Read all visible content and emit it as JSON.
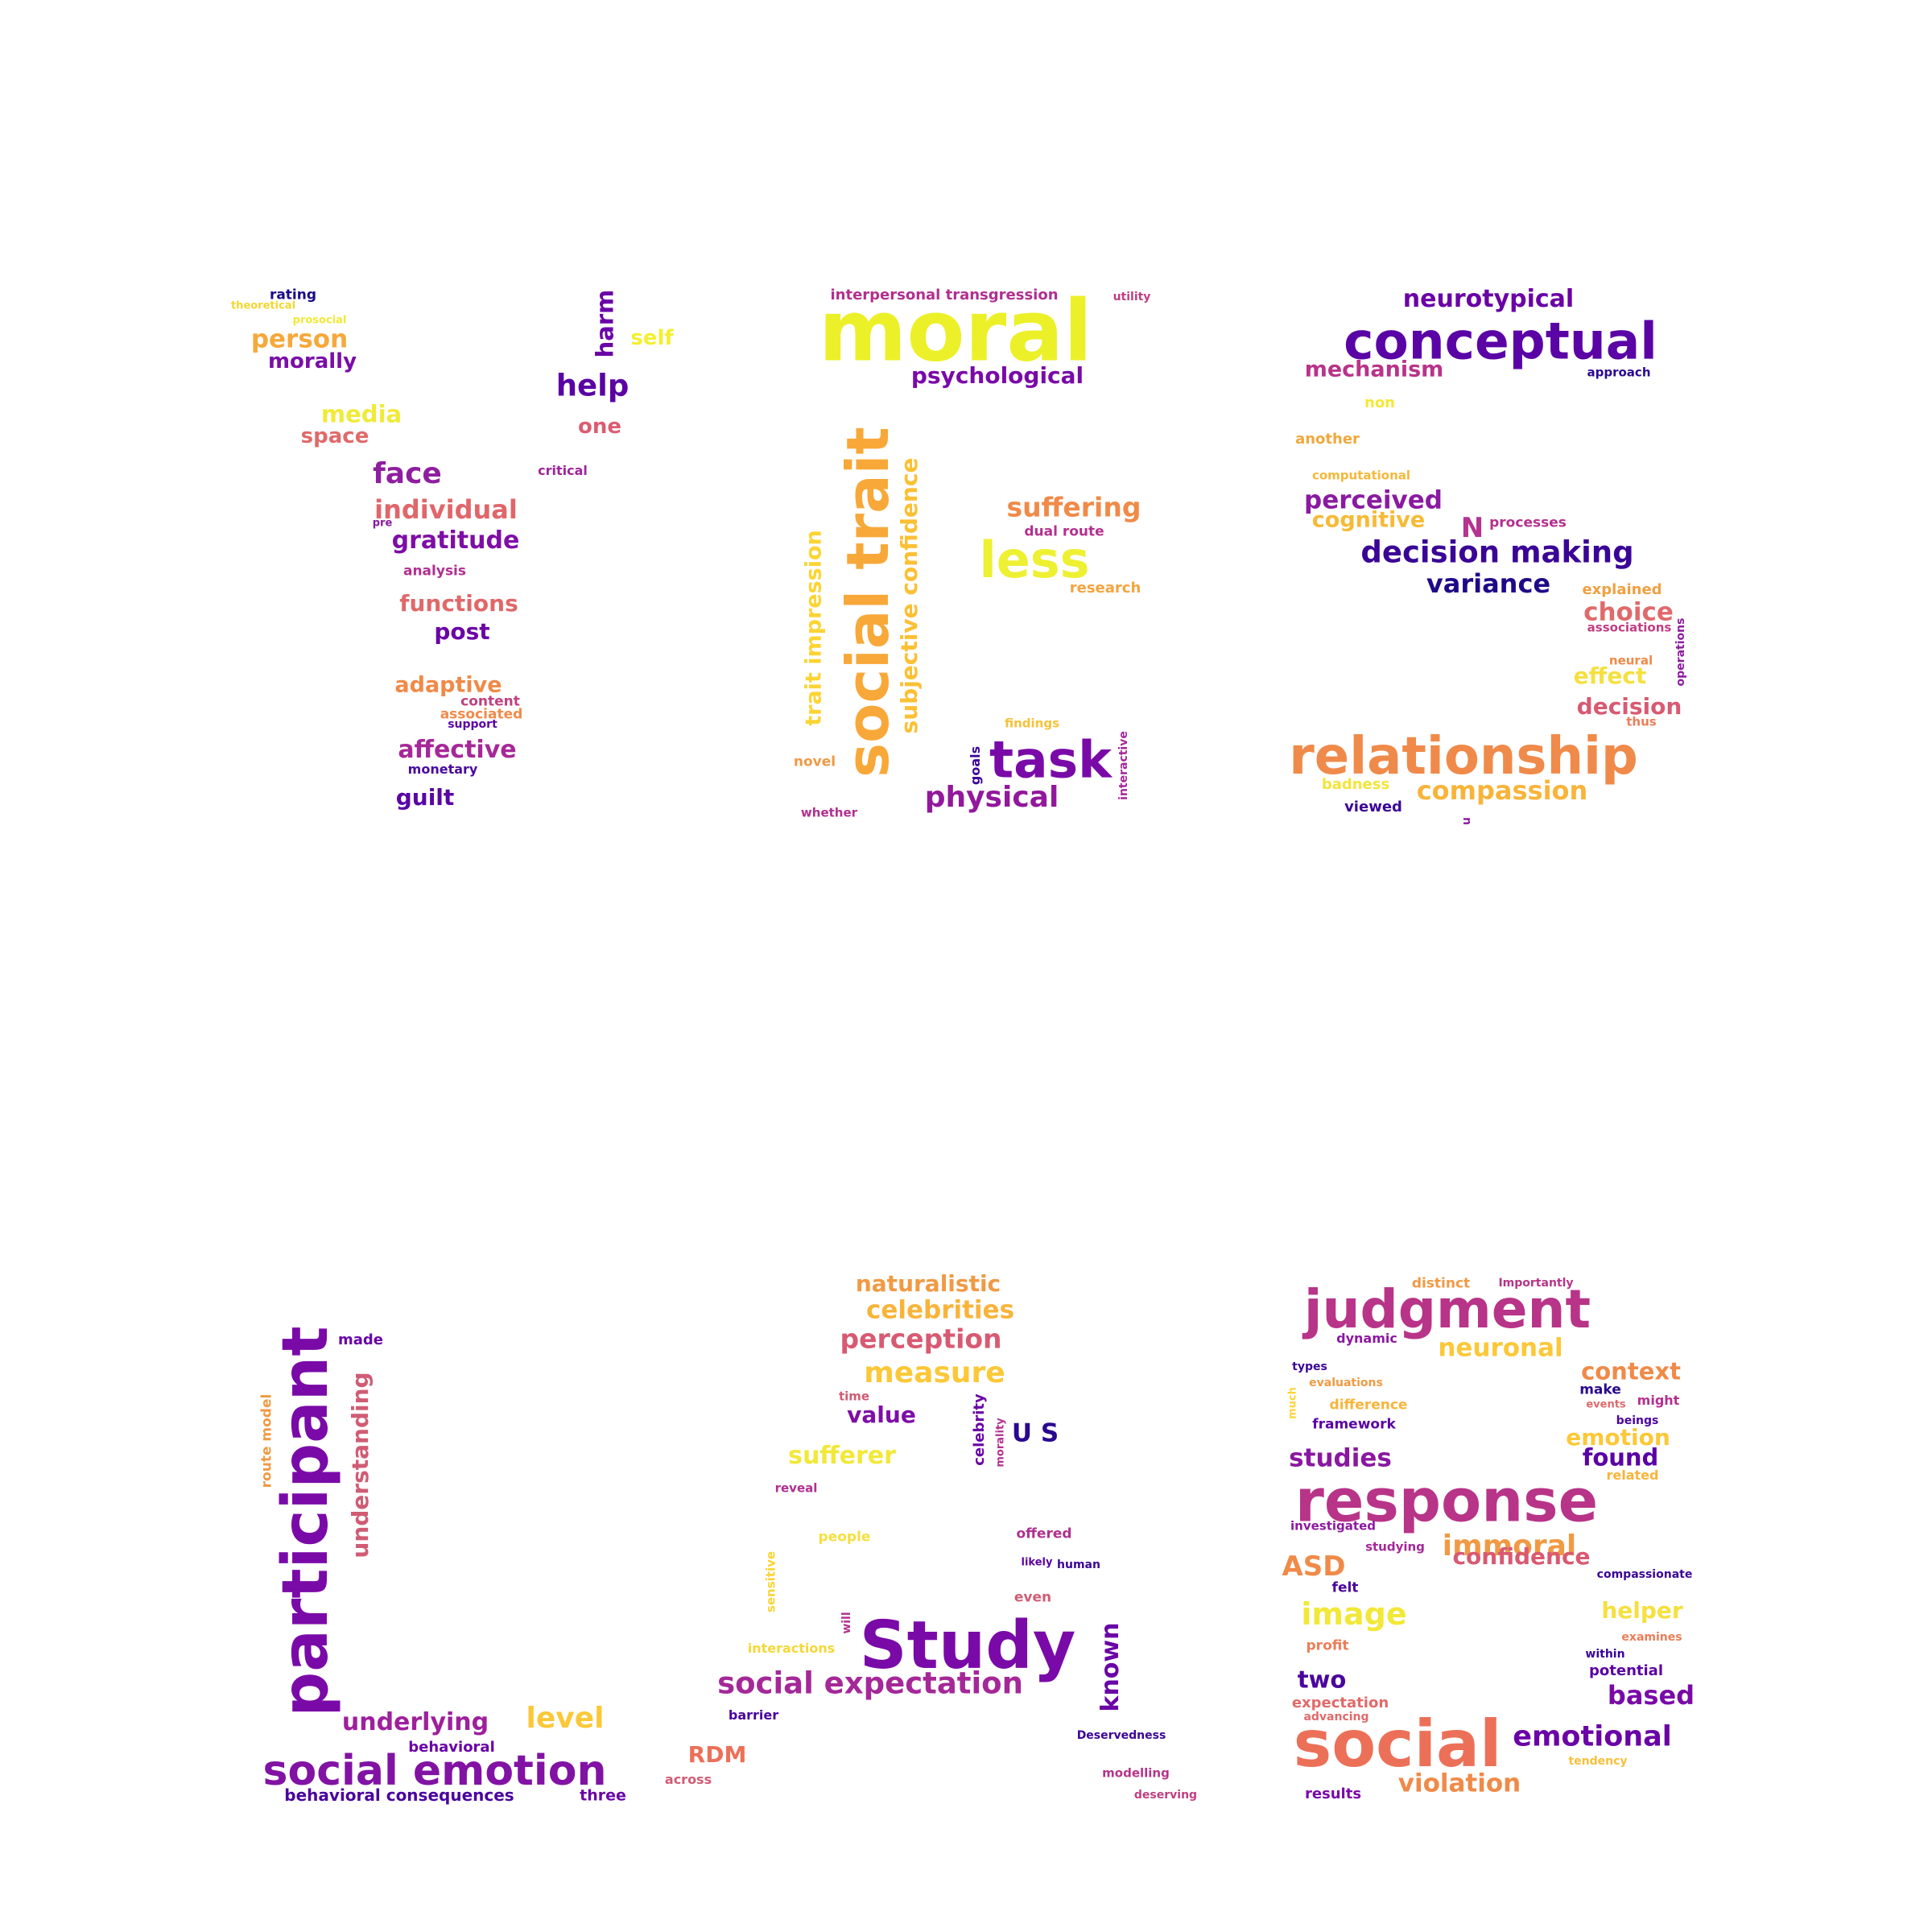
{
  "clouds": [
    {
      "words": [
        {
          "text": "rating",
          "c": "#1a0a86"
        },
        {
          "text": "theoretical",
          "c": "#f5d630"
        },
        {
          "text": "prosocial",
          "c": "#f3e838"
        },
        {
          "text": "person",
          "c": "#f7a83a"
        },
        {
          "text": "morally",
          "c": "#7a0fa8"
        },
        {
          "text": "harm",
          "c": "#6a04a8"
        },
        {
          "text": "self",
          "c": "#f2f030"
        },
        {
          "text": "help",
          "c": "#5a03a4"
        },
        {
          "text": "media",
          "c": "#f0ea3a"
        },
        {
          "text": "space",
          "c": "#e06a6a"
        },
        {
          "text": "one",
          "c": "#dc5c70"
        },
        {
          "text": "face",
          "c": "#8e1ea0"
        },
        {
          "text": "critical",
          "c": "#a0249a"
        },
        {
          "text": "individual",
          "c": "#e0666a"
        },
        {
          "text": "pre",
          "c": "#8a18a0"
        },
        {
          "text": "gratitude",
          "c": "#7e0ea6"
        },
        {
          "text": "analysis",
          "c": "#b0308f"
        },
        {
          "text": "functions",
          "c": "#e0686a"
        },
        {
          "text": "post",
          "c": "#6a02a6"
        },
        {
          "text": "adaptive",
          "c": "#f08a48"
        },
        {
          "text": "content",
          "c": "#c0407e"
        },
        {
          "text": "associated",
          "c": "#f08a4a"
        },
        {
          "text": "support",
          "c": "#5c02a4"
        },
        {
          "text": "affective",
          "c": "#a62898"
        },
        {
          "text": "monetary",
          "c": "#4a0aa0"
        },
        {
          "text": "guilt",
          "c": "#5a04a6"
        }
      ]
    },
    {
      "words": [
        {
          "text": "interpersonal transgression",
          "c": "#b0308f"
        },
        {
          "text": "utility",
          "c": "#c03e80"
        },
        {
          "text": "moral",
          "c": "#ecf028"
        },
        {
          "text": "psychological",
          "c": "#7a0aa8"
        },
        {
          "text": "social trait",
          "c": "#f8a838"
        },
        {
          "text": "subjective confidence",
          "c": "#fcc034"
        },
        {
          "text": "trait impression",
          "c": "#fcd434"
        },
        {
          "text": "suffering",
          "c": "#f08a48"
        },
        {
          "text": "dual route",
          "c": "#b4308e"
        },
        {
          "text": "less",
          "c": "#eef032"
        },
        {
          "text": "research",
          "c": "#f4a43e"
        },
        {
          "text": "findings",
          "c": "#f6c23a"
        },
        {
          "text": "goals",
          "c": "#3a0498"
        },
        {
          "text": "task",
          "c": "#7a0aa8"
        },
        {
          "text": "interactive",
          "c": "#a42898"
        },
        {
          "text": "novel",
          "c": "#ee9a44"
        },
        {
          "text": "physical",
          "c": "#92189c"
        },
        {
          "text": "whether",
          "c": "#b0308f"
        }
      ]
    },
    {
      "words": [
        {
          "text": "neurotypical",
          "c": "#6a02a6"
        },
        {
          "text": "conceptual",
          "c": "#5a04a6"
        },
        {
          "text": "mechanism",
          "c": "#b83488"
        },
        {
          "text": "approach",
          "c": "#2a0890"
        },
        {
          "text": "non",
          "c": "#f5e838"
        },
        {
          "text": "another",
          "c": "#f0a83c"
        },
        {
          "text": "computational",
          "c": "#f4b83a"
        },
        {
          "text": "perceived",
          "c": "#8a1aa0"
        },
        {
          "text": "cognitive",
          "c": "#f6ba36"
        },
        {
          "text": "N",
          "c": "#b43490"
        },
        {
          "text": "processes",
          "c": "#b4308e"
        },
        {
          "text": "decision making",
          "c": "#3a0596"
        },
        {
          "text": "variance",
          "c": "#1e0a88"
        },
        {
          "text": "explained",
          "c": "#f0a040"
        },
        {
          "text": "choice",
          "c": "#e06a6a"
        },
        {
          "text": "associations",
          "c": "#c03e82"
        },
        {
          "text": "operations",
          "c": "#8e1aa0"
        },
        {
          "text": "neural",
          "c": "#f08a48"
        },
        {
          "text": "effect",
          "c": "#f5e040"
        },
        {
          "text": "decision",
          "c": "#d85a72"
        },
        {
          "text": "thus",
          "c": "#ec7e58"
        },
        {
          "text": "relationship",
          "c": "#f08a4a"
        },
        {
          "text": "badness",
          "c": "#f5e43a"
        },
        {
          "text": "compassion",
          "c": "#f8b43a"
        },
        {
          "text": "viewed",
          "c": "#3a0598"
        },
        {
          "text": "u",
          "c": "#8a18a0"
        }
      ]
    },
    {
      "words": [
        {
          "text": "participant",
          "c": "#7a0aa8"
        },
        {
          "text": "made",
          "c": "#6a02a6"
        },
        {
          "text": "route model",
          "c": "#f09a44"
        },
        {
          "text": "understanding",
          "c": "#d05c74"
        },
        {
          "text": "underlying",
          "c": "#9e209c"
        },
        {
          "text": "level",
          "c": "#fcc838"
        },
        {
          "text": "behavioral",
          "c": "#6a02a6"
        },
        {
          "text": "social emotion",
          "c": "#8212a4"
        },
        {
          "text": "behavioral consequences",
          "c": "#4a049e"
        },
        {
          "text": "three",
          "c": "#6a04a6"
        }
      ]
    },
    {
      "words": [
        {
          "text": "naturalistic",
          "c": "#f09a44"
        },
        {
          "text": "celebrities",
          "c": "#f8b43a"
        },
        {
          "text": "perception",
          "c": "#d85a72"
        },
        {
          "text": "measure",
          "c": "#fcc838"
        },
        {
          "text": "time",
          "c": "#d05c74"
        },
        {
          "text": "value",
          "c": "#7e0ea6"
        },
        {
          "text": "U S",
          "c": "#2a0890"
        },
        {
          "text": "celebrity",
          "c": "#6a04a6"
        },
        {
          "text": "morality",
          "c": "#b4308e"
        },
        {
          "text": "sufferer",
          "c": "#f2e838"
        },
        {
          "text": "reveal",
          "c": "#b0308f"
        },
        {
          "text": "people",
          "c": "#f5e040"
        },
        {
          "text": "offered",
          "c": "#b0308f"
        },
        {
          "text": "likely",
          "c": "#5a03a4"
        },
        {
          "text": "human",
          "c": "#3a0596"
        },
        {
          "text": "sensitive",
          "c": "#fcd434"
        },
        {
          "text": "even",
          "c": "#d05c74"
        },
        {
          "text": "will",
          "c": "#b4308e"
        },
        {
          "text": "interactions",
          "c": "#f5d838"
        },
        {
          "text": "Study",
          "c": "#7a0aa8"
        },
        {
          "text": "known",
          "c": "#6a04a6"
        },
        {
          "text": "social expectation",
          "c": "#a42898"
        },
        {
          "text": "barrier",
          "c": "#4a049e"
        },
        {
          "text": "Deservedness",
          "c": "#3a0596"
        },
        {
          "text": "RDM",
          "c": "#ec7058"
        },
        {
          "text": "across",
          "c": "#d05c74"
        },
        {
          "text": "modelling",
          "c": "#b83488"
        },
        {
          "text": "deserving",
          "c": "#c03e80"
        }
      ]
    },
    {
      "words": [
        {
          "text": "distinct",
          "c": "#f09a44"
        },
        {
          "text": "Importantly",
          "c": "#b83488"
        },
        {
          "text": "judgment",
          "c": "#b83488"
        },
        {
          "text": "dynamic",
          "c": "#8a18a0"
        },
        {
          "text": "neuronal",
          "c": "#fcc838"
        },
        {
          "text": "types",
          "c": "#3a0596"
        },
        {
          "text": "evaluations",
          "c": "#f09a44"
        },
        {
          "text": "much",
          "c": "#fcd434"
        },
        {
          "text": "difference",
          "c": "#f8b43a"
        },
        {
          "text": "framework",
          "c": "#5a03a4"
        },
        {
          "text": "context",
          "c": "#f08a48"
        },
        {
          "text": "make",
          "c": "#2a0890"
        },
        {
          "text": "events",
          "c": "#e06a6a"
        },
        {
          "text": "might",
          "c": "#b4308e"
        },
        {
          "text": "beings",
          "c": "#4a049e"
        },
        {
          "text": "emotion",
          "c": "#fcc838"
        },
        {
          "text": "studies",
          "c": "#8a18a0"
        },
        {
          "text": "found",
          "c": "#5a03a4"
        },
        {
          "text": "related",
          "c": "#f8b43a"
        },
        {
          "text": "response",
          "c": "#b83488"
        },
        {
          "text": "investigated",
          "c": "#8e1aa0"
        },
        {
          "text": "immoral",
          "c": "#f09a44"
        },
        {
          "text": "studying",
          "c": "#a42898"
        },
        {
          "text": "confidence",
          "c": "#d85a72"
        },
        {
          "text": "ASD",
          "c": "#f08a48"
        },
        {
          "text": "compassionate",
          "c": "#3a0596"
        },
        {
          "text": "felt",
          "c": "#4a049e"
        },
        {
          "text": "image",
          "c": "#f2e838"
        },
        {
          "text": "helper",
          "c": "#f5e040"
        },
        {
          "text": "profit",
          "c": "#ec7e58"
        },
        {
          "text": "examines",
          "c": "#ec7e58"
        },
        {
          "text": "within",
          "c": "#3a0596"
        },
        {
          "text": "two",
          "c": "#4a049e"
        },
        {
          "text": "potential",
          "c": "#5a03a4"
        },
        {
          "text": "expectation",
          "c": "#e06a6a"
        },
        {
          "text": "based",
          "c": "#7a0aa8"
        },
        {
          "text": "advancing",
          "c": "#e06a6a"
        },
        {
          "text": "social",
          "c": "#ec7058"
        },
        {
          "text": "emotional",
          "c": "#6a04a6"
        },
        {
          "text": "tendency",
          "c": "#f8c03a"
        },
        {
          "text": "violation",
          "c": "#f08a48"
        },
        {
          "text": "results",
          "c": "#7a0aa8"
        }
      ]
    }
  ]
}
